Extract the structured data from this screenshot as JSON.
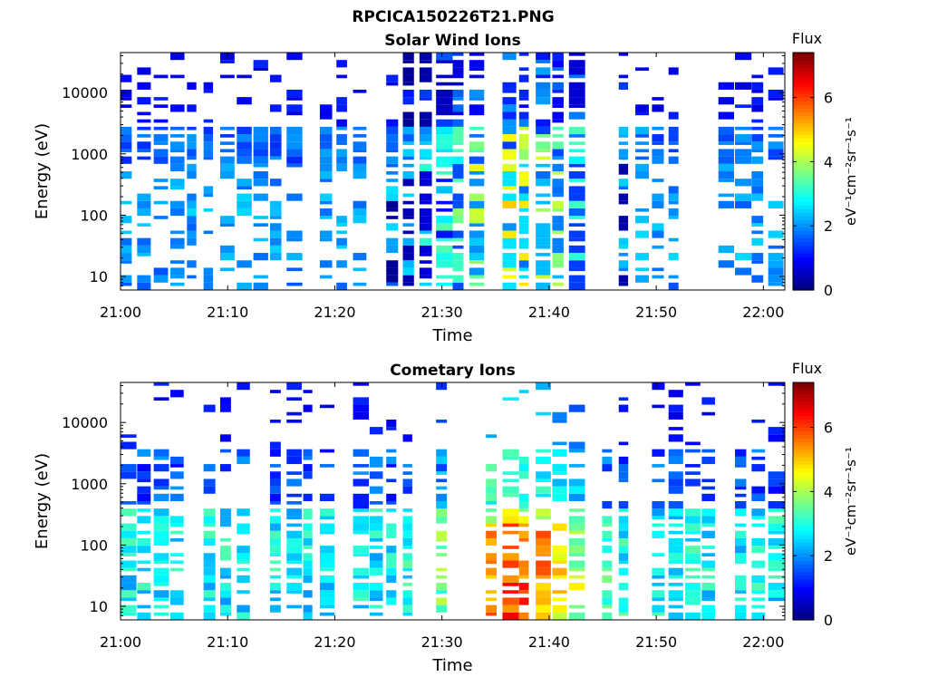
{
  "figure": {
    "title": "RPCICA150226T21.PNG"
  },
  "chart_data": [
    {
      "type": "heatmap",
      "title": "Solar Wind Ions",
      "xlabel": "Time",
      "ylabel": "Energy (eV)",
      "x_ticks": [
        "21:00",
        "21:10",
        "21:20",
        "21:30",
        "21:40",
        "21:50",
        "22:00"
      ],
      "x_range": [
        "21:00",
        "22:02"
      ],
      "y_scale": "log",
      "y_ticks": [
        10,
        100,
        1000,
        10000
      ],
      "y_range": [
        6,
        45000
      ],
      "colorbar": {
        "label_top": "Flux",
        "label": "eV⁻¹cm⁻²sr⁻¹s⁻¹",
        "range": [
          0,
          7.4
        ],
        "ticks": [
          0,
          2,
          4,
          6
        ],
        "colormap": "jet"
      },
      "profile": "solar",
      "seed": 11
    },
    {
      "type": "heatmap",
      "title": "Cometary Ions",
      "xlabel": "Time",
      "ylabel": "Energy (eV)",
      "x_ticks": [
        "21:00",
        "21:10",
        "21:20",
        "21:30",
        "21:40",
        "21:50",
        "22:00"
      ],
      "x_range": [
        "21:00",
        "22:02"
      ],
      "y_scale": "log",
      "y_ticks": [
        10,
        100,
        1000,
        10000
      ],
      "y_range": [
        6,
        45000
      ],
      "colorbar": {
        "label_top": "Flux",
        "label": "eV⁻¹cm⁻²sr⁻¹s⁻¹",
        "range": [
          0,
          7.4
        ],
        "ticks": [
          0,
          2,
          4,
          6
        ],
        "colormap": "jet"
      },
      "profile": "cometary",
      "seed": 29
    }
  ]
}
